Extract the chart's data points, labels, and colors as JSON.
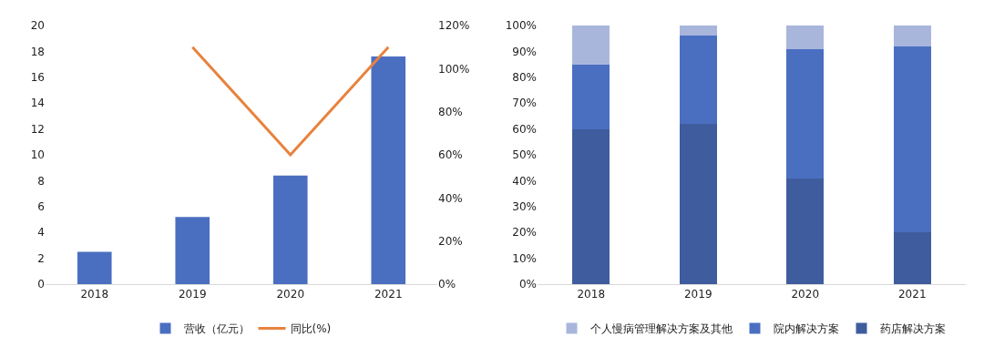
{
  "chart_data": [
    {
      "type": "bar",
      "categories": [
        "2018",
        "2019",
        "2020",
        "2021"
      ],
      "series": [
        {
          "name": "营收（亿元）",
          "color": "#4a6fc1",
          "values": [
            2.5,
            5.2,
            8.4,
            17.6
          ]
        },
        {
          "name": "同比(%)",
          "color": "#e8823e",
          "type": "line",
          "axis": "y2",
          "values": [
            null,
            110,
            60,
            110
          ]
        }
      ],
      "ylim": [
        0,
        20
      ],
      "yticks": [
        0,
        2,
        4,
        6,
        8,
        10,
        12,
        14,
        16,
        18,
        20
      ],
      "y2lim": [
        0,
        120
      ],
      "y2ticks": [
        {
          "value": 0,
          "label": "0%"
        },
        {
          "value": 20,
          "label": "20%"
        },
        {
          "value": 40,
          "label": "40%"
        },
        {
          "value": 60,
          "label": "60%"
        },
        {
          "value": 80,
          "label": "80%"
        },
        {
          "value": 100,
          "label": "100%"
        },
        {
          "value": 120,
          "label": "120%"
        }
      ],
      "grid": false,
      "legend": "bottom",
      "marker": "none"
    },
    {
      "type": "bar",
      "stacked": true,
      "categories": [
        "2018",
        "2019",
        "2020",
        "2021"
      ],
      "series": [
        {
          "name": "药店解决方案",
          "color": "#3f5d9e",
          "values": [
            60,
            62,
            41,
            20
          ]
        },
        {
          "name": "院内解决方案",
          "color": "#4a6fc1",
          "values": [
            25,
            34,
            50,
            72
          ]
        },
        {
          "name": "个人慢病管理解决方案及其他",
          "color": "#a9b6dc",
          "values": [
            15,
            4,
            9,
            8
          ]
        }
      ],
      "ylim": [
        0,
        100
      ],
      "yticks": [
        {
          "value": 0,
          "label": "0%"
        },
        {
          "value": 10,
          "label": "10%"
        },
        {
          "value": 20,
          "label": "20%"
        },
        {
          "value": 30,
          "label": "30%"
        },
        {
          "value": 40,
          "label": "40%"
        },
        {
          "value": 50,
          "label": "50%"
        },
        {
          "value": 60,
          "label": "60%"
        },
        {
          "value": 70,
          "label": "70%"
        },
        {
          "value": 80,
          "label": "80%"
        },
        {
          "value": 90,
          "label": "90%"
        },
        {
          "value": 100,
          "label": "100%"
        }
      ],
      "grid": false,
      "legend": "bottom"
    }
  ]
}
